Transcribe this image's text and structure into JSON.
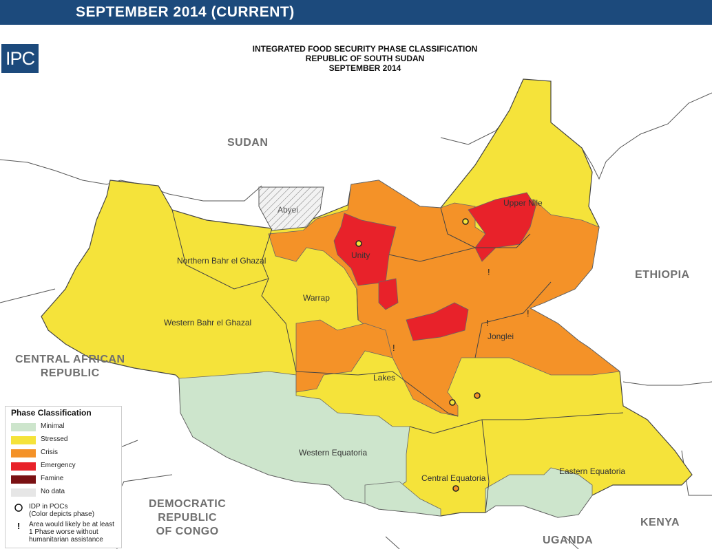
{
  "banner": {
    "text": "SEPTEMBER 2014 (CURRENT)"
  },
  "logo": {
    "text": "IPC"
  },
  "title": {
    "line1": "INTEGRATED FOOD SECURITY PHASE CLASSIFICATION",
    "line2": "REPUBLIC OF SOUTH SUDAN",
    "line3": "SEPTEMBER 2014"
  },
  "countries": {
    "sudan": "SUDAN",
    "ethiopia": "ETHIOPIA",
    "car_line1": "CENTRAL AFRICAN",
    "car_line2": "REPUBLIC",
    "drc_line1": "DEMOCRATIC",
    "drc_line2": "REPUBLIC",
    "drc_line3": "OF CONGO",
    "kenya": "KENYA",
    "uganda": "UGANDA"
  },
  "states": {
    "abyei": "Abyei",
    "upper_nile": "Upper Nile",
    "unity": "Unity",
    "northern_bahr_el_ghazal": "Northern Bahr el Ghazal",
    "warrap": "Warrap",
    "western_bahr_el_ghazal": "Western Bahr el Ghazal",
    "jonglei": "Jonglei",
    "lakes": "Lakes",
    "western_equatoria": "Western Equatoria",
    "central_equatoria": "Central Equatoria",
    "eastern_equatoria": "Eastern Equatoria"
  },
  "colors": {
    "minimal": "#cde5cc",
    "stressed": "#f5e33a",
    "crisis": "#f49228",
    "emergency": "#e8222a",
    "famine": "#7a1113",
    "no_data": "#e6e6e6",
    "banner": "#1c4a7c"
  },
  "legend": {
    "title": "Phase Classification",
    "items": [
      {
        "label": "Minimal",
        "color": "#cde5cc"
      },
      {
        "label": "Stressed",
        "color": "#f5e33a"
      },
      {
        "label": "Crisis",
        "color": "#f49228"
      },
      {
        "label": "Emergency",
        "color": "#e8222a"
      },
      {
        "label": "Famine",
        "color": "#7a1113"
      },
      {
        "label": "No data",
        "color": "#e6e6e6"
      }
    ],
    "idp_line1": "IDP in POCs",
    "idp_line2": "(Color depicts phase)",
    "note_line1": "Area would likely be at least",
    "note_line2": "1 Phase worse without",
    "note_line3": "humanitarian assistance"
  }
}
